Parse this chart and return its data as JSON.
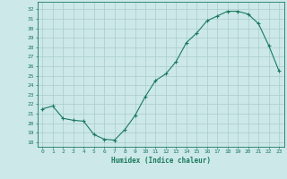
{
  "x": [
    0,
    1,
    2,
    3,
    4,
    5,
    6,
    7,
    8,
    9,
    10,
    11,
    12,
    13,
    14,
    15,
    16,
    17,
    18,
    19,
    20,
    21,
    22,
    23
  ],
  "y": [
    21.5,
    21.8,
    20.5,
    20.3,
    20.2,
    18.8,
    18.3,
    18.2,
    19.3,
    20.8,
    22.8,
    24.5,
    25.2,
    26.5,
    28.5,
    29.5,
    30.8,
    31.3,
    31.8,
    31.8,
    31.5,
    30.5,
    28.2,
    25.5
  ],
  "line_color": "#1a7a5e",
  "marker": "+",
  "bg_color": "#cce8e8",
  "grid_color": "#aacccc",
  "xlabel": "Humidex (Indice chaleur)",
  "ylabel_ticks": [
    18,
    19,
    20,
    21,
    22,
    23,
    24,
    25,
    26,
    27,
    28,
    29,
    30,
    31,
    32
  ],
  "ylim": [
    17.5,
    32.8
  ],
  "xlim": [
    -0.5,
    23.5
  ],
  "tick_color": "#1a7a5e",
  "label_color": "#1a7a5e",
  "spine_color": "#1a7a5e"
}
